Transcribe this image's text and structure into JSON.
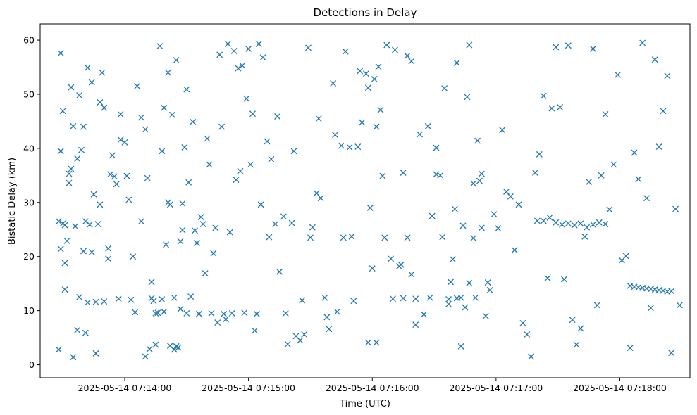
{
  "chart_data": {
    "type": "scatter",
    "title": "Detections in Delay",
    "xlabel": "Time (UTC)",
    "ylabel": "Bistatic Delay (km)",
    "x_ticks": [
      "2025-05-14 07:14:00",
      "2025-05-14 07:15:00",
      "2025-05-14 07:16:00",
      "2025-05-14 07:17:00",
      "2025-05-14 07:18:00"
    ],
    "y_ticks": [
      "0",
      "10",
      "20",
      "30",
      "40",
      "50",
      "60"
    ],
    "xlim": [
      "2025-05-14 07:13:19",
      "2025-05-14 07:18:34"
    ],
    "ylim": [
      -2.4,
      63
    ],
    "marker": "x",
    "color": "#1f77b4",
    "grid": false,
    "series": [
      {
        "x": [
          "07:13:28",
          "07:13:28",
          "07:13:29",
          "07:13:29",
          "07:13:30",
          "07:13:30",
          "07:13:31",
          "07:13:31",
          "07:13:32",
          "07:13:33",
          "07:13:34",
          "07:13:34",
          "07:13:35",
          "07:13:36",
          "07:13:37",
          "07:13:38",
          "07:13:38",
          "07:13:39",
          "07:13:40",
          "07:13:41",
          "07:13:42",
          "07:13:42",
          "07:13:43",
          "07:13:44",
          "07:13:45",
          "07:13:46",
          "07:13:47",
          "07:13:48",
          "07:13:49",
          "07:13:50",
          "07:13:52",
          "07:13:53",
          "07:13:55",
          "07:13:57",
          "07:13:58",
          "07:14:01",
          "07:14:03",
          "07:14:05",
          "07:14:08",
          "07:14:10",
          "07:14:13",
          "07:14:15",
          "07:14:18",
          "07:14:21",
          "07:14:24",
          "07:14:27",
          "07:14:19",
          "07:14:22",
          "07:14:25",
          "07:14:28",
          "07:14:30",
          "07:14:32",
          "07:14:34",
          "07:14:36",
          "07:14:38",
          "07:14:40",
          "07:14:42",
          "07:14:44",
          "07:14:46",
          "07:14:48",
          "07:14:10",
          "07:14:12",
          "07:14:14",
          "07:14:16",
          "07:14:18",
          "07:14:20",
          "07:14:22",
          "07:14:24",
          "07:14:26",
          "07:14:28",
          "07:14:30",
          "07:14:50",
          "07:14:52",
          "07:14:54",
          "07:14:56",
          "07:14:58",
          "07:15:00",
          "07:15:02",
          "07:15:04",
          "07:15:06",
          "07:15:10",
          "07:15:14",
          "07:15:18",
          "07:15:22",
          "07:15:26",
          "07:15:30",
          "07:15:34",
          "07:15:38",
          "07:15:42",
          "07:15:46",
          "07:15:50",
          "07:15:54",
          "07:15:58",
          "07:16:02",
          "07:16:06",
          "07:16:10",
          "07:16:14",
          "07:15:58",
          "07:16:00",
          "07:16:02",
          "07:16:04",
          "07:16:15",
          "07:16:17",
          "07:16:19",
          "07:16:21",
          "07:16:28",
          "07:16:31",
          "07:16:34",
          "07:16:37",
          "07:16:40",
          "07:16:43",
          "07:16:46",
          "07:16:49",
          "07:16:52",
          "07:16:38",
          "07:16:41",
          "07:16:44",
          "07:16:47",
          "07:16:50",
          "07:16:53",
          "07:16:56",
          "07:17:20",
          "07:17:23",
          "07:17:26",
          "07:17:29",
          "07:17:32",
          "07:17:35",
          "07:17:38",
          "07:17:41",
          "07:17:44",
          "07:17:47",
          "07:17:50",
          "07:17:53",
          "07:18:05",
          "07:18:07",
          "07:18:09",
          "07:18:11",
          "07:18:13",
          "07:18:15",
          "07:18:17",
          "07:18:19",
          "07:18:21",
          "07:18:23",
          "07:18:25",
          "07:13:29",
          "07:13:33",
          "07:13:40",
          "07:13:46",
          "07:13:52",
          "07:13:58",
          "07:14:04",
          "07:14:11",
          "07:14:17",
          "07:14:23",
          "07:14:29",
          "07:14:35",
          "07:14:41",
          "07:14:47",
          "07:14:53",
          "07:14:59",
          "07:15:05",
          "07:15:11",
          "07:15:17",
          "07:15:23",
          "07:15:29",
          "07:15:35",
          "07:15:41",
          "07:15:47",
          "07:15:53",
          "07:15:59",
          "07:16:05",
          "07:16:11",
          "07:16:17",
          "07:16:23",
          "07:16:29",
          "07:16:35",
          "07:16:41",
          "07:16:47",
          "07:16:53",
          "07:16:59",
          "07:17:05",
          "07:17:11",
          "07:17:17",
          "07:17:23",
          "07:17:29",
          "07:17:35",
          "07:17:41",
          "07:17:47",
          "07:17:53",
          "07:17:59",
          "07:18:05",
          "07:18:11",
          "07:18:17",
          "07:18:23",
          "07:13:31",
          "07:13:37",
          "07:13:44",
          "07:13:50",
          "07:13:56",
          "07:14:02",
          "07:14:08",
          "07:14:15",
          "07:14:21",
          "07:14:27",
          "07:14:33",
          "07:14:39",
          "07:14:45",
          "07:14:51",
          "07:14:57",
          "07:15:03",
          "07:15:09",
          "07:15:15",
          "07:15:21",
          "07:15:27",
          "07:15:33",
          "07:15:39",
          "07:15:45",
          "07:15:51",
          "07:15:57",
          "07:16:03",
          "07:16:09",
          "07:16:15",
          "07:16:21",
          "07:16:27",
          "07:16:33",
          "07:16:39",
          "07:16:45",
          "07:16:51",
          "07:16:57",
          "07:17:03",
          "07:17:09",
          "07:17:15",
          "07:17:21",
          "07:17:27",
          "07:17:33",
          "07:17:39",
          "07:17:45",
          "07:17:51",
          "07:17:57",
          "07:18:03",
          "07:18:09",
          "07:18:15",
          "07:18:21",
          "07:18:27",
          "07:13:35",
          "07:13:41",
          "07:13:48",
          "07:13:54",
          "07:14:00",
          "07:14:06",
          "07:14:13",
          "07:14:19",
          "07:14:25",
          "07:14:31",
          "07:14:37",
          "07:14:43",
          "07:14:49",
          "07:14:55",
          "07:15:01",
          "07:15:07",
          "07:15:13",
          "07:15:19",
          "07:15:25",
          "07:15:31",
          "07:15:37",
          "07:15:43",
          "07:15:49",
          "07:15:55",
          "07:16:01",
          "07:16:07",
          "07:16:13",
          "07:16:19",
          "07:16:25",
          "07:16:31",
          "07:16:37",
          "07:16:43",
          "07:16:49",
          "07:16:55",
          "07:17:01",
          "07:17:07",
          "07:17:13",
          "07:17:19",
          "07:17:25",
          "07:17:31",
          "07:17:37",
          "07:17:43",
          "07:17:49",
          "07:17:55",
          "07:18:01",
          "07:18:07",
          "07:18:13",
          "07:18:19",
          "07:18:25",
          "07:18:29"
        ],
        "y": [
          2.8,
          26.5,
          39.5,
          21.4,
          46.9,
          26.1,
          13.9,
          25.8,
          22.9,
          33.6,
          51.3,
          36.2,
          44.1,
          25.6,
          38.1,
          12.5,
          49.8,
          39.7,
          21.0,
          26.5,
          54.9,
          11.5,
          25.9,
          52.2,
          31.5,
          11.6,
          26.0,
          48.5,
          54.0,
          11.7,
          21.5,
          35.2,
          34.8,
          12.2,
          46.3,
          34.9,
          12.0,
          9.7,
          26.5,
          43.5,
          12.3,
          9.5,
          39.5,
          30.0,
          12.4,
          22.8,
          47.5,
          3.5,
          3.4,
          29.8,
          9.5,
          12.6,
          24.8,
          9.4,
          26.0,
          41.8,
          9.5,
          25.3,
          57.3,
          9.4,
          1.5,
          2.9,
          11.8,
          9.6,
          12.1,
          22.2,
          29.6,
          2.8,
          3.2,
          24.9,
          50.9,
          59.3,
          9.5,
          34.2,
          35.8,
          9.6,
          58.4,
          46.4,
          9.4,
          29.6,
          23.6,
          45.9,
          9.5,
          39.5,
          11.9,
          23.5,
          45.5,
          8.8,
          42.5,
          23.5,
          23.7,
          54.3,
          4.1,
          44.0,
          23.5,
          12.2,
          18.5,
          51.2,
          17.8,
          4.1,
          47.1,
          12.3,
          23.5,
          16.7,
          12.2,
          12.4,
          35.2,
          23.6,
          12.1,
          28.8,
          12.4,
          49.5,
          23.4,
          34.0,
          15.3,
          12.3,
          25.7,
          15.1,
          12.4,
          25.3,
          15.2,
          26.6,
          26.6,
          27.2,
          26.3,
          25.9,
          26.1,
          25.8,
          26.1,
          25.4,
          25.9,
          26.3,
          26.0,
          14.6,
          14.4,
          14.3,
          14.2,
          14.1,
          14.0,
          13.9,
          13.8,
          13.7,
          13.5,
          13.6,
          57.6,
          35.3,
          44.0,
          2.1,
          19.6,
          41.6,
          20.0,
          34.5,
          58.9,
          46.2,
          40.2,
          22.5,
          37.0,
          44.0,
          58.0,
          49.2,
          59.3,
          38.0,
          27.4,
          5.3,
          58.6,
          30.8,
          52.0,
          57.9,
          40.3,
          29.0,
          34.9,
          58.2,
          57.1,
          42.6,
          27.5,
          51.1,
          55.8,
          59.1,
          35.3,
          27.8,
          32.0,
          29.6,
          1.5,
          49.7,
          58.7,
          59.0,
          6.7,
          58.4,
          46.3,
          53.6,
          3.1,
          59.5,
          56.4,
          53.4,
          18.8,
          6.4,
          20.8,
          47.5,
          33.4,
          30.5,
          45.7,
          3.7,
          54.0,
          10.3,
          44.9,
          16.9,
          7.8,
          24.5,
          55.3,
          6.3,
          41.3,
          17.2,
          26.2,
          5.6,
          31.7,
          6.6,
          40.5,
          11.8,
          53.8,
          55.1,
          19.6,
          35.5,
          7.4,
          44.1,
          35.0,
          19.5,
          10.6,
          41.4,
          13.8,
          43.4,
          21.2,
          5.6,
          38.9,
          47.4,
          15.8,
          3.7,
          33.8,
          35.0,
          37.0,
          20.1,
          34.3,
          10.5,
          46.9,
          28.8,
          1.4,
          5.9,
          29.6,
          38.7,
          41.1,
          51.5,
          15.3,
          9.8,
          56.3,
          33.7,
          27.3,
          20.6,
          8.4,
          54.8,
          37.0,
          56.8,
          26.0,
          3.8,
          4.5,
          25.4,
          12.4,
          9.8,
          40.2,
          44.8,
          52.8,
          59.1,
          18.2,
          56.1,
          9.3,
          40.1,
          11.2,
          3.4,
          33.5,
          9.0,
          25.2,
          31.1,
          7.7,
          35.5,
          16.0,
          47.6,
          8.3,
          23.7,
          11.0,
          28.7,
          19.3,
          39.2,
          30.8,
          40.3,
          2.2,
          11.0
        ]
      }
    ]
  }
}
